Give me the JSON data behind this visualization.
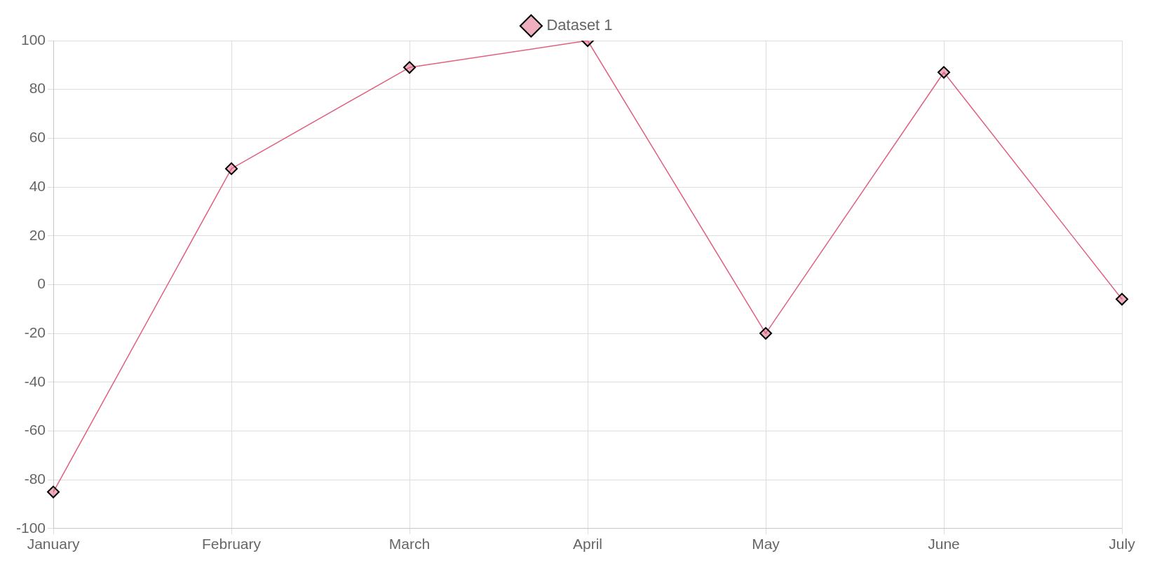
{
  "chart_data": {
    "type": "line",
    "categories": [
      "January",
      "February",
      "March",
      "April",
      "May",
      "June",
      "July"
    ],
    "series": [
      {
        "name": "Dataset 1",
        "color": "#e0607e",
        "values": [
          -85,
          47.5,
          89,
          100,
          -20,
          87,
          -6
        ]
      }
    ],
    "ylim": [
      -100,
      100
    ],
    "yticks": [
      -100,
      -80,
      -60,
      -40,
      -20,
      0,
      20,
      40,
      60,
      80,
      100
    ],
    "grid": true,
    "legend": "top",
    "marker": "diamond",
    "line_style": "solid"
  }
}
